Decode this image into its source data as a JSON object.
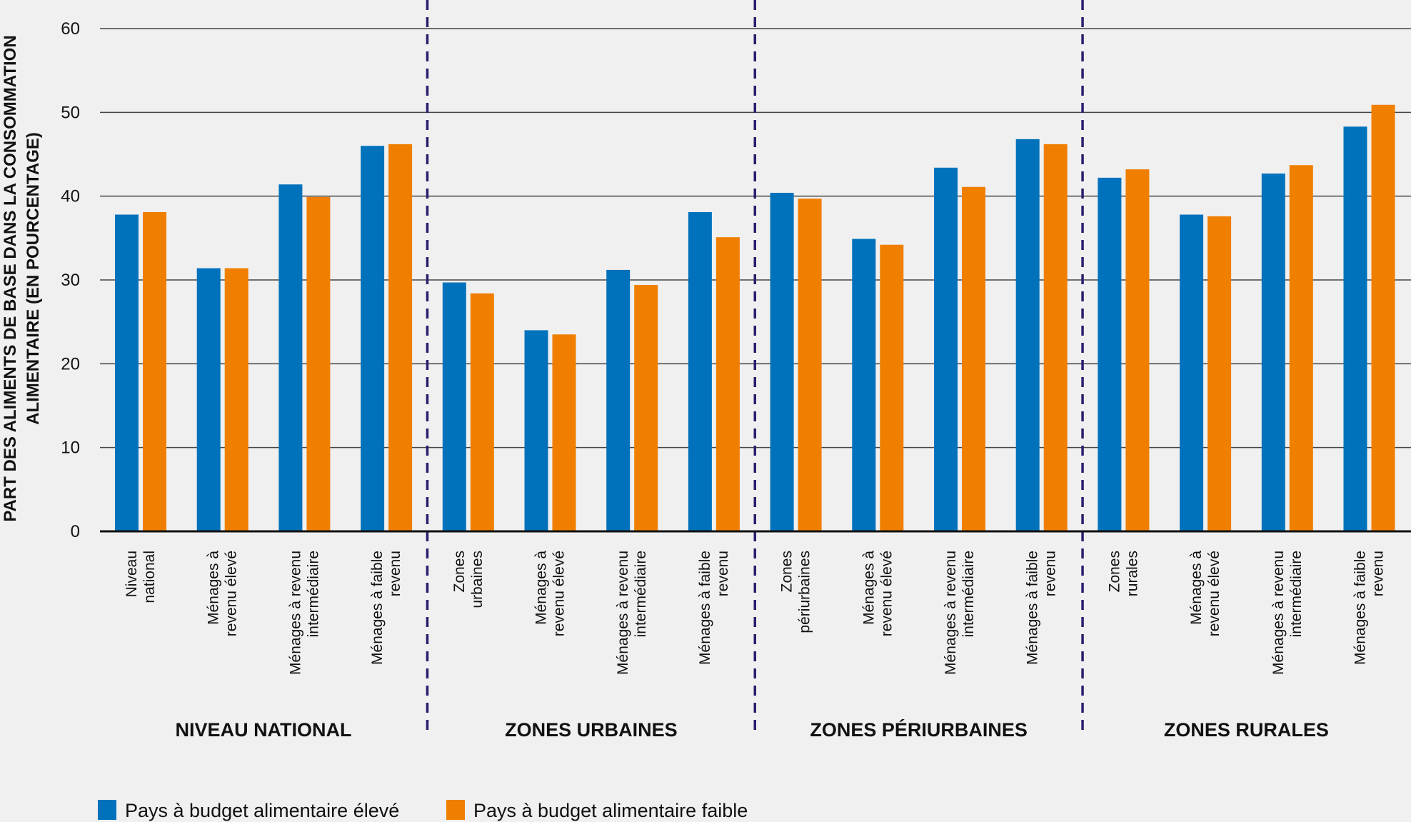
{
  "chart_data": {
    "type": "bar",
    "ylabel": [
      "PART DES ALIMENTS DE BASE DANS LA CONSOMMATION",
      "ALIMENTAIRE (EN POURCENTAGE)"
    ],
    "ylim": [
      0,
      60
    ],
    "yticks": [
      0,
      10,
      20,
      30,
      40,
      50,
      60
    ],
    "grid": true,
    "legend_position": "bottom-left",
    "groups": [
      {
        "label": "NIVEAU NATIONAL",
        "categories": [
          [
            "Niveau",
            "national"
          ],
          [
            "Ménages à",
            "revenu élevé"
          ],
          [
            "Ménages à revenu",
            "intermédiaire"
          ],
          [
            "Ménages à faible",
            "revenu"
          ]
        ]
      },
      {
        "label": "ZONES URBAINES",
        "categories": [
          [
            "Zones",
            "urbaines"
          ],
          [
            "Ménages à",
            "revenu élevé"
          ],
          [
            "Ménages à revenu",
            "intermédiaire"
          ],
          [
            "Ménages à faible",
            "revenu"
          ]
        ]
      },
      {
        "label": "ZONES PÉRIURBAINES",
        "categories": [
          [
            "Zones",
            "périurbaines"
          ],
          [
            "Ménages à",
            "revenu élevé"
          ],
          [
            "Ménages à revenu",
            "intermédiaire"
          ],
          [
            "Ménages à faible",
            "revenu"
          ]
        ]
      },
      {
        "label": "ZONES RURALES",
        "categories": [
          [
            "Zones",
            "rurales"
          ],
          [
            "Ménages à",
            "revenu élevé"
          ],
          [
            "Ménages à revenu",
            "intermédiaire"
          ],
          [
            "Ménages à faible",
            "revenu"
          ]
        ]
      }
    ],
    "series": [
      {
        "name": "Pays à budget alimentaire élevé",
        "color": "#0072bc",
        "values": [
          37.8,
          31.4,
          41.4,
          46.0,
          29.7,
          24.0,
          31.2,
          38.1,
          40.4,
          34.9,
          43.4,
          46.8,
          42.2,
          37.8,
          42.7,
          48.3
        ]
      },
      {
        "name": "Pays à budget alimentaire faible",
        "color": "#f07f00",
        "values": [
          38.1,
          31.4,
          39.9,
          46.2,
          28.4,
          23.5,
          29.4,
          35.1,
          39.7,
          34.2,
          41.1,
          46.2,
          43.2,
          37.6,
          43.7,
          50.9
        ]
      }
    ],
    "separator_color": "#2a1f6e"
  }
}
